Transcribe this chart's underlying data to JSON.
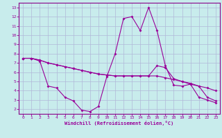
{
  "xlabel": "Windchill (Refroidissement éolien,°C)",
  "background_color": "#c8ecec",
  "grid_color": "#b0b8d8",
  "line_color": "#990099",
  "border_color": "#880088",
  "xlim": [
    -0.5,
    23.5
  ],
  "ylim": [
    1.5,
    13.5
  ],
  "xticks": [
    0,
    1,
    2,
    3,
    4,
    5,
    6,
    7,
    8,
    9,
    10,
    11,
    12,
    13,
    14,
    15,
    16,
    17,
    18,
    19,
    20,
    21,
    22,
    23
  ],
  "yticks": [
    2,
    3,
    4,
    5,
    6,
    7,
    8,
    9,
    10,
    11,
    12,
    13
  ],
  "line1_x": [
    0,
    1,
    2,
    3,
    4,
    5,
    6,
    7,
    8,
    9,
    10,
    11,
    12,
    13,
    14,
    15,
    16,
    17,
    18,
    19,
    20,
    21,
    22,
    23
  ],
  "line1_y": [
    7.5,
    7.5,
    7.2,
    4.5,
    4.3,
    3.3,
    2.9,
    1.9,
    1.75,
    2.3,
    5.5,
    8.0,
    11.8,
    12.0,
    10.5,
    13.0,
    10.5,
    6.7,
    4.6,
    4.5,
    4.7,
    3.3,
    3.0,
    2.7
  ],
  "line2_x": [
    0,
    1,
    2,
    3,
    4,
    5,
    6,
    7,
    8,
    9,
    10,
    11,
    12,
    13,
    14,
    15,
    16,
    17,
    18,
    19,
    20,
    21,
    22,
    23
  ],
  "line2_y": [
    7.5,
    7.5,
    7.3,
    7.0,
    6.8,
    6.6,
    6.4,
    6.2,
    6.0,
    5.8,
    5.7,
    5.6,
    5.6,
    5.6,
    5.6,
    5.6,
    6.7,
    6.5,
    5.3,
    5.0,
    4.8,
    4.5,
    3.3,
    2.9
  ],
  "line3_x": [
    0,
    1,
    2,
    3,
    4,
    5,
    6,
    7,
    8,
    9,
    10,
    11,
    12,
    13,
    14,
    15,
    16,
    17,
    18,
    19,
    20,
    21,
    22,
    23
  ],
  "line3_y": [
    7.5,
    7.5,
    7.3,
    7.0,
    6.8,
    6.6,
    6.4,
    6.2,
    6.0,
    5.8,
    5.7,
    5.6,
    5.6,
    5.6,
    5.6,
    5.6,
    5.6,
    5.4,
    5.2,
    5.0,
    4.7,
    4.5,
    4.3,
    4.0
  ]
}
